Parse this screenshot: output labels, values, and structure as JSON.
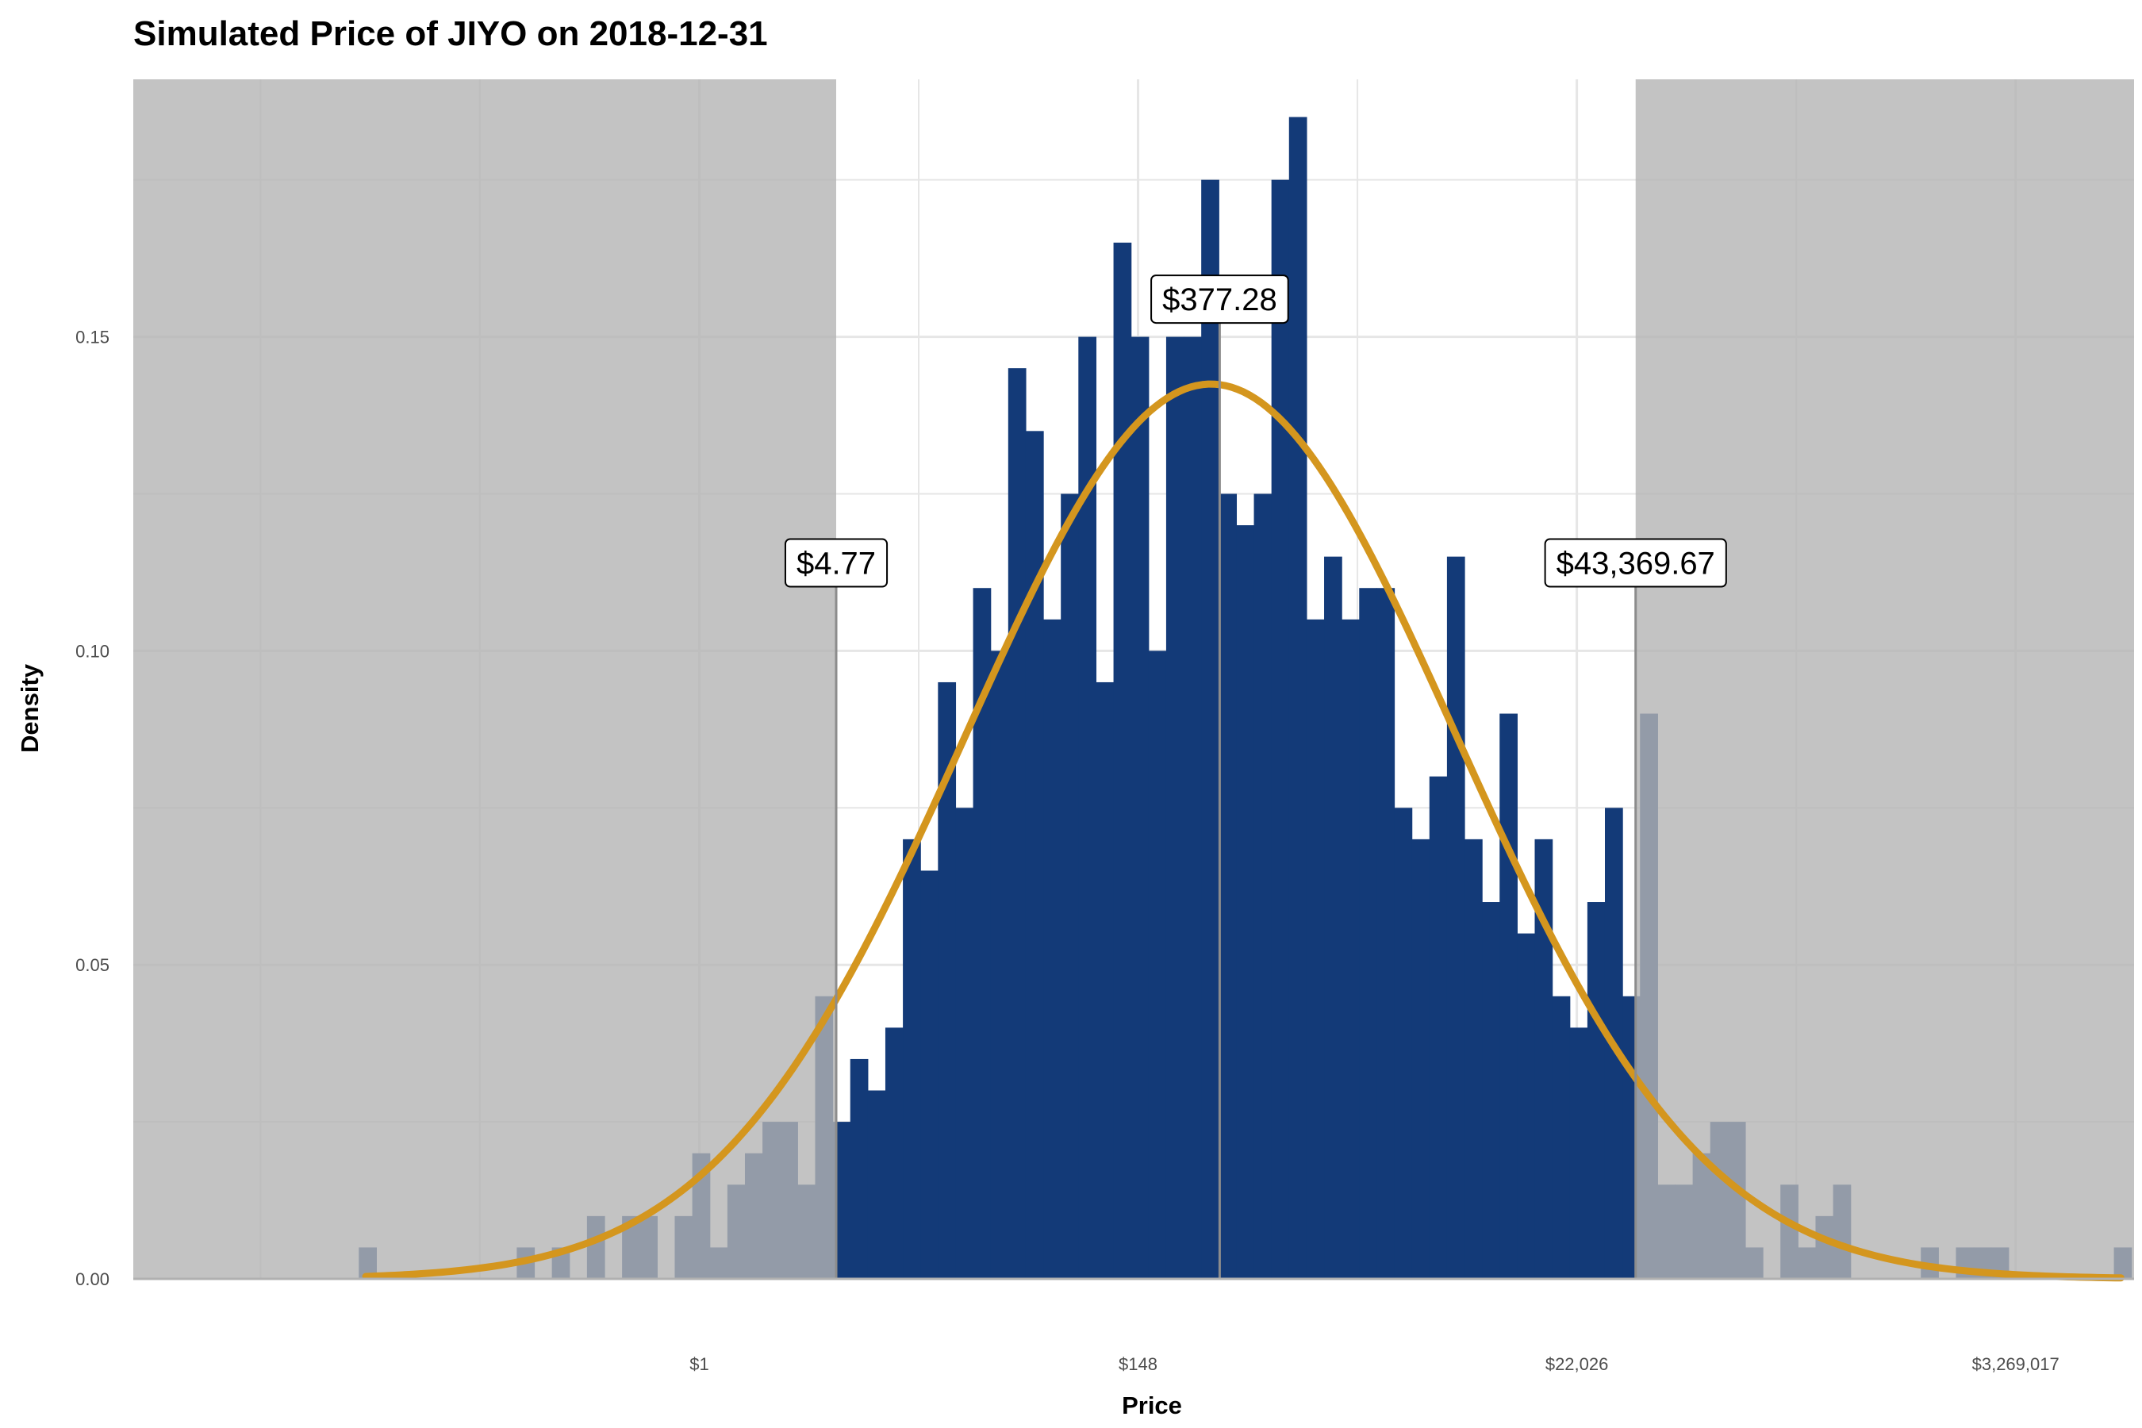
{
  "chart_data": {
    "type": "bar",
    "title": "Simulated Price of JIYO on 2018-12-31",
    "xlabel": "Price",
    "ylabel": "Density",
    "x_scale": "log",
    "xlim": [
      -6.45,
      16.35
    ],
    "ylim": [
      0,
      0.191
    ],
    "x_ticks": [
      {
        "value": 0,
        "label": "$1"
      },
      {
        "value": 5,
        "label": "$148"
      },
      {
        "value": 10,
        "label": "$22,026"
      },
      {
        "value": 15,
        "label": "$3,269,017"
      }
    ],
    "y_ticks": [
      {
        "value": 0,
        "label": "0.00"
      },
      {
        "value": 0.05,
        "label": "0.05"
      },
      {
        "value": 0.1,
        "label": "0.10"
      },
      {
        "value": 0.15,
        "label": "0.15"
      }
    ],
    "bin_start": -3.88,
    "bin_width": 0.2,
    "densities": [
      0.005,
      0,
      0,
      0,
      0,
      0,
      0,
      0,
      0,
      0.005,
      0,
      0.005,
      0,
      0.01,
      0,
      0.01,
      0.01,
      0,
      0.01,
      0.02,
      0.005,
      0.015,
      0.02,
      0.025,
      0.025,
      0.015,
      0.045,
      0.025,
      0.035,
      0.03,
      0.04,
      0.07,
      0.065,
      0.095,
      0.075,
      0.11,
      0.1,
      0.145,
      0.135,
      0.105,
      0.125,
      0.15,
      0.095,
      0.165,
      0.15,
      0.1,
      0.15,
      0.15,
      0.175,
      0.125,
      0.12,
      0.125,
      0.175,
      0.185,
      0.105,
      0.115,
      0.105,
      0.11,
      0.11,
      0.075,
      0.07,
      0.08,
      0.115,
      0.07,
      0.06,
      0.09,
      0.055,
      0.07,
      0.045,
      0.04,
      0.06,
      0.075,
      0.045,
      0.09,
      0.015,
      0.015,
      0.02,
      0.025,
      0.025,
      0.005,
      0,
      0.015,
      0.005,
      0.01,
      0.015,
      0,
      0,
      0,
      0,
      0.005,
      0,
      0.005,
      0.005,
      0.005,
      0,
      0,
      0,
      0,
      0,
      0,
      0.005
    ],
    "fit_curve": {
      "type": "normal",
      "mu": 5.83,
      "sigma": 2.8,
      "x_range": [
        -3.8,
        16.2
      ],
      "color": "#D4961E"
    },
    "shaded_regions": [
      {
        "from": -6.45,
        "to": 1.56
      },
      {
        "from": 10.67,
        "to": 16.35
      }
    ],
    "annotations": [
      {
        "x": 1.56,
        "label": "$4.77",
        "label_y": 0.114
      },
      {
        "x": 5.93,
        "label": "$377.28",
        "label_y": 0.156
      },
      {
        "x": 10.67,
        "label": "$43,369.67",
        "label_y": 0.114
      }
    ],
    "colors": {
      "bars": "#133A78",
      "curve": "#D4961E",
      "shade": "#B4B4B4",
      "grid": "#E6E6E6",
      "panel": "#FFFFFF"
    }
  }
}
